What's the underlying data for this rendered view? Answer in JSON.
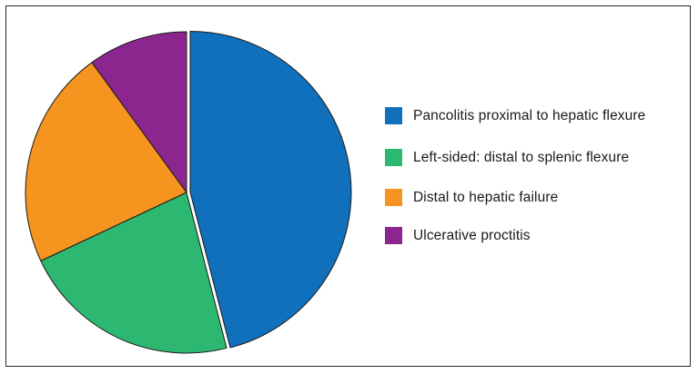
{
  "chart_data": {
    "type": "pie",
    "title": "",
    "series": [
      {
        "name": "Pancolitis proximal to hepatic flexure",
        "value": 46,
        "color": "#1170bb"
      },
      {
        "name": "Left-sided: distal to splenic flexure",
        "value": 22,
        "color": "#2db872"
      },
      {
        "name": "Distal to hepatic failure",
        "value": 22,
        "color": "#f5941f"
      },
      {
        "name": "Ulcerative proctitis",
        "value": 10,
        "color": "#8c268e"
      }
    ],
    "exploded_slice": "Pancolitis proximal to hepatic flexure",
    "legend_position": "right"
  }
}
